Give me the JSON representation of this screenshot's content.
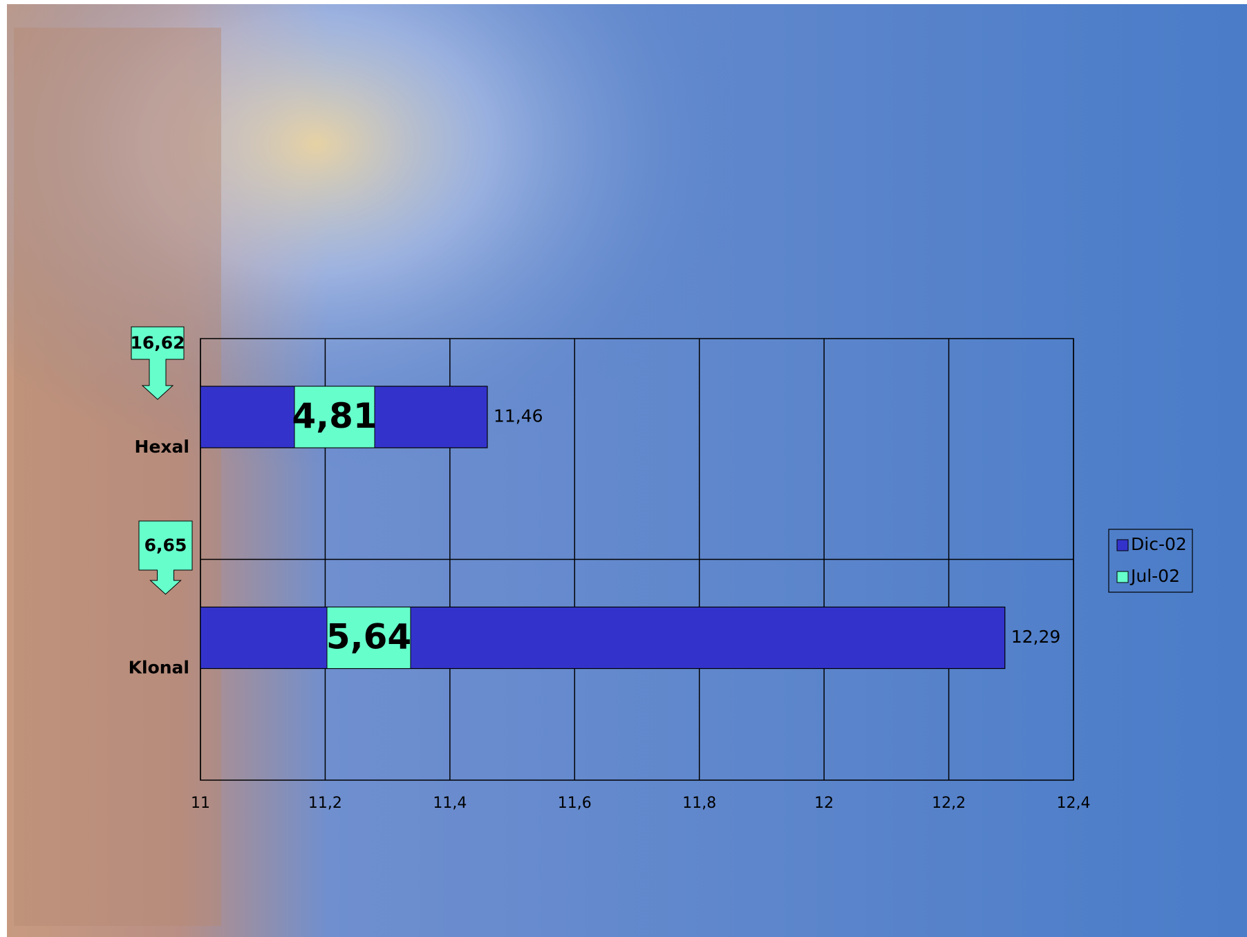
{
  "chart_data": {
    "type": "bar",
    "orientation": "horizontal",
    "categories": [
      "Hexal",
      "Klonal"
    ],
    "series": [
      {
        "name": "Dic-02",
        "color": "#3333cc",
        "values": [
          11.46,
          12.29
        ],
        "value_labels": [
          "11,46",
          "12,29"
        ]
      },
      {
        "name": "Jul-02",
        "color": "#66ffcc",
        "values": [
          16.62,
          6.65
        ],
        "value_labels": [
          "16,62",
          "6,65"
        ]
      }
    ],
    "annotations": [
      "4,81",
      "5,64"
    ],
    "xlim": [
      11,
      12.4
    ],
    "xticks": [
      11,
      {
        "value": 11.2,
        "label": "11,2"
      },
      {
        "value": 11.4,
        "label": "11,4"
      },
      {
        "value": 11.6,
        "label": "11,6"
      },
      {
        "value": 11.8,
        "label": "11,8"
      },
      12,
      {
        "value": 12.2,
        "label": "12,2"
      },
      {
        "value": 12.4,
        "label": "12,4"
      }
    ],
    "grid": true,
    "legend": "right"
  }
}
